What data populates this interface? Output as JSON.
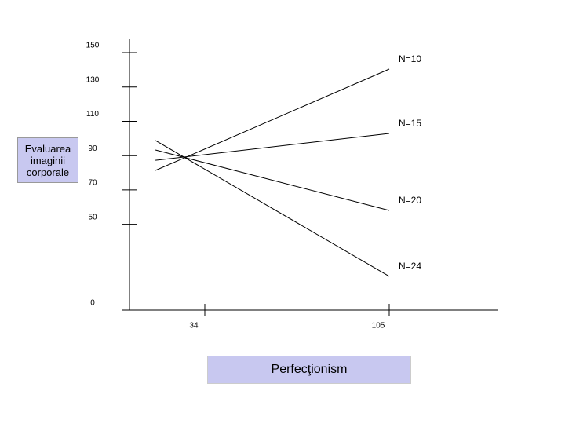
{
  "chart_data": {
    "type": "line",
    "y_label": "Evaluarea imaginii corporale",
    "x_label": "Perfecţionism",
    "x": [
      15,
      105
    ],
    "series": [
      {
        "name": "N=10",
        "color": "#000000",
        "values": [
          81.4,
          140.4
        ]
      },
      {
        "name": "N=15",
        "color": "#000000",
        "values": [
          87.3,
          102.9
        ]
      },
      {
        "name": "N=20",
        "color": "#000000",
        "values": [
          93.3,
          58.1
        ]
      },
      {
        "name": "N=24",
        "color": "#000000",
        "values": [
          98.8,
          19.7
        ]
      }
    ],
    "xlim": [
      5,
      147
    ],
    "xticks": [
      34,
      105
    ],
    "ylim": [
      0,
      150
    ],
    "yticks": [
      0,
      50,
      70,
      90,
      110,
      130,
      150
    ]
  }
}
